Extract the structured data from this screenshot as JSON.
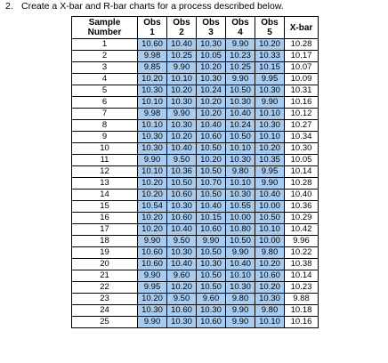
{
  "question": {
    "number": "2.",
    "text": "Create a X-bar and R-bar charts for a process described below."
  },
  "table": {
    "headers": {
      "sample": [
        "Sample",
        "Number"
      ],
      "obs": [
        [
          "Obs",
          "1"
        ],
        [
          "Obs",
          "2"
        ],
        [
          "Obs",
          "3"
        ],
        [
          "Obs",
          "4"
        ],
        [
          "Obs",
          "5"
        ]
      ],
      "xbar": "X-bar"
    },
    "rows": [
      {
        "sample": "1",
        "obs": [
          "10.60",
          "10.40",
          "10.30",
          "9.90",
          "10.20"
        ],
        "xbar": "10.28"
      },
      {
        "sample": "2",
        "obs": [
          "9.98",
          "10.25",
          "10.05",
          "10.23",
          "10.33"
        ],
        "xbar": "10.17"
      },
      {
        "sample": "3",
        "obs": [
          "9.85",
          "9.90",
          "10.20",
          "10.25",
          "10.15"
        ],
        "xbar": "10.07"
      },
      {
        "sample": "4",
        "obs": [
          "10.20",
          "10.10",
          "10.30",
          "9.90",
          "9.95"
        ],
        "xbar": "10.09"
      },
      {
        "sample": "5",
        "obs": [
          "10.30",
          "10.20",
          "10.24",
          "10.50",
          "10.30"
        ],
        "xbar": "10.31"
      },
      {
        "sample": "6",
        "obs": [
          "10.10",
          "10.30",
          "10.20",
          "10.30",
          "9.90"
        ],
        "xbar": "10.16"
      },
      {
        "sample": "7",
        "obs": [
          "9.98",
          "9.90",
          "10.20",
          "10.40",
          "10.10"
        ],
        "xbar": "10.12"
      },
      {
        "sample": "8",
        "obs": [
          "10.10",
          "10.30",
          "10.40",
          "10.24",
          "10.30"
        ],
        "xbar": "10.27"
      },
      {
        "sample": "9",
        "obs": [
          "10.30",
          "10.20",
          "10.60",
          "10.50",
          "10.10"
        ],
        "xbar": "10.34"
      },
      {
        "sample": "10",
        "obs": [
          "10.30",
          "10.40",
          "10.50",
          "10.10",
          "10.20"
        ],
        "xbar": "10.30"
      },
      {
        "sample": "11",
        "obs": [
          "9.90",
          "9.50",
          "10.20",
          "10.30",
          "10.35"
        ],
        "xbar": "10.05"
      },
      {
        "sample": "12",
        "obs": [
          "10.10",
          "10.36",
          "10.50",
          "9.80",
          "9.95"
        ],
        "xbar": "10.14"
      },
      {
        "sample": "13",
        "obs": [
          "10.20",
          "10.50",
          "10.70",
          "10.10",
          "9.90"
        ],
        "xbar": "10.28"
      },
      {
        "sample": "14",
        "obs": [
          "10.20",
          "10.60",
          "10.50",
          "10.30",
          "10.40"
        ],
        "xbar": "10.40"
      },
      {
        "sample": "15",
        "obs": [
          "10.54",
          "10.30",
          "10.40",
          "10.55",
          "10.00"
        ],
        "xbar": "10.36"
      },
      {
        "sample": "16",
        "obs": [
          "10.20",
          "10.60",
          "10.15",
          "10.00",
          "10.50"
        ],
        "xbar": "10.29"
      },
      {
        "sample": "17",
        "obs": [
          "10.20",
          "10.40",
          "10.60",
          "10.80",
          "10.10"
        ],
        "xbar": "10.42"
      },
      {
        "sample": "18",
        "obs": [
          "9.90",
          "9.50",
          "9.90",
          "10.50",
          "10.00"
        ],
        "xbar": "9.96"
      },
      {
        "sample": "19",
        "obs": [
          "10.60",
          "10.30",
          "10.50",
          "9.90",
          "9.80"
        ],
        "xbar": "10.22"
      },
      {
        "sample": "20",
        "obs": [
          "10.60",
          "10.40",
          "10.30",
          "10.40",
          "10.20"
        ],
        "xbar": "10.38"
      },
      {
        "sample": "21",
        "obs": [
          "9.90",
          "9.60",
          "10.50",
          "10.10",
          "10.60"
        ],
        "xbar": "10.14"
      },
      {
        "sample": "22",
        "obs": [
          "9.95",
          "10.20",
          "10.50",
          "10.30",
          "10.20"
        ],
        "xbar": "10.23"
      },
      {
        "sample": "23",
        "obs": [
          "10.20",
          "9.50",
          "9.60",
          "9.80",
          "10.30"
        ],
        "xbar": "9.88"
      },
      {
        "sample": "24",
        "obs": [
          "10.30",
          "10.60",
          "10.30",
          "9.90",
          "9.80"
        ],
        "xbar": "10.18"
      },
      {
        "sample": "25",
        "obs": [
          "9.90",
          "10.30",
          "10.60",
          "9.90",
          "10.10"
        ],
        "xbar": "10.16"
      }
    ]
  },
  "colors": {
    "obs_fill": "#a8ccf0",
    "border": "#000000"
  }
}
